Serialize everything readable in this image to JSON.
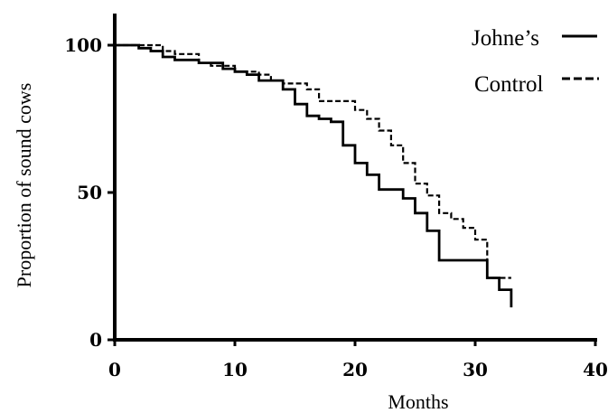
{
  "chart_data": {
    "type": "line",
    "title": "",
    "xlabel": "Months",
    "ylabel": "Proportion of sound cows",
    "xlim": [
      0,
      40
    ],
    "ylim": [
      0,
      110
    ],
    "x_ticks": [
      0,
      10,
      20,
      30,
      40
    ],
    "y_ticks": [
      0,
      50,
      100
    ],
    "x_tick_labels": [
      "0",
      "10",
      "20",
      "30",
      "40"
    ],
    "y_tick_labels": [
      "0",
      "50",
      "100"
    ],
    "grid": false,
    "legend_position": "top-right",
    "step": true,
    "series": [
      {
        "name": "Johne’s",
        "style": "solid",
        "color": "#000000",
        "x": [
          0,
          2,
          3,
          4,
          5,
          7,
          9,
          10,
          11,
          12,
          14,
          15,
          16,
          17,
          18,
          19,
          20,
          21,
          22,
          24,
          25,
          26,
          27,
          31,
          32,
          33,
          33
        ],
        "y": [
          100,
          99,
          98,
          96,
          95,
          94,
          92,
          91,
          90,
          88,
          85,
          80,
          76,
          75,
          74,
          66,
          60,
          56,
          51,
          48,
          43,
          37,
          27,
          21,
          17,
          13,
          11
        ]
      },
      {
        "name": "Control",
        "style": "dashed",
        "color": "#000000",
        "x": [
          0,
          4,
          5,
          7,
          8,
          10,
          12,
          13,
          14,
          16,
          17,
          20,
          21,
          22,
          23,
          24,
          25,
          26,
          27,
          28,
          29,
          30,
          31,
          33
        ],
        "y": [
          100,
          98,
          97,
          94,
          93,
          91,
          90,
          88,
          87,
          85,
          81,
          78,
          75,
          71,
          66,
          60,
          53,
          49,
          43,
          41,
          38,
          34,
          21,
          21
        ]
      }
    ]
  }
}
